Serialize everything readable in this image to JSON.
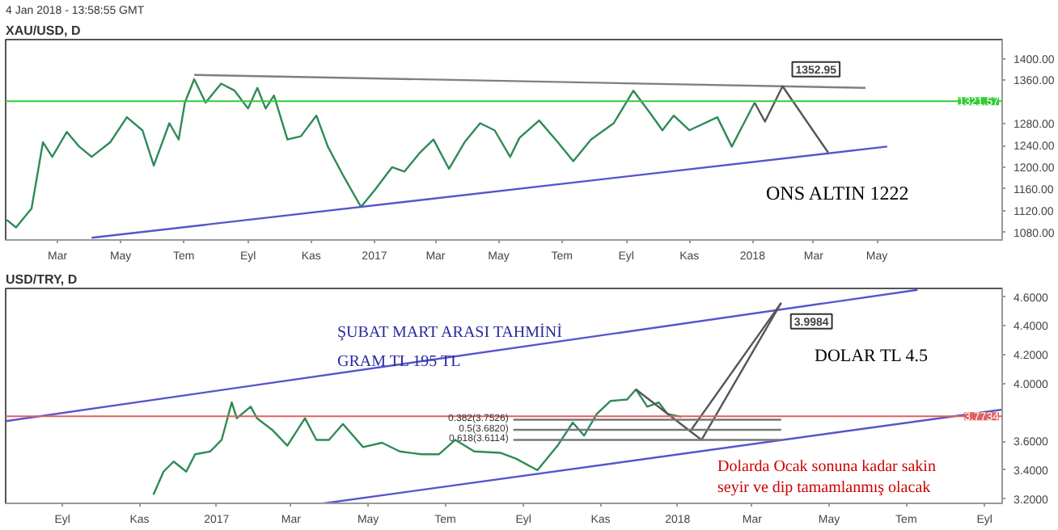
{
  "chart_data": [
    {
      "type": "line",
      "title": "XAU/USD, D",
      "subtitle": "4 Jan 2018 - 13:58:55 GMT",
      "xlim": [
        "2016-01-11",
        "2018-08-30"
      ],
      "ylim": [
        1066,
        1435
      ],
      "xticks": [
        {
          "value": "2016-03-01",
          "label": "Mar"
        },
        {
          "value": "2016-05-01",
          "label": "May"
        },
        {
          "value": "2016-07-01",
          "label": "Tem"
        },
        {
          "value": "2016-09-01",
          "label": "Eyl"
        },
        {
          "value": "2016-11-01",
          "label": "Kas"
        },
        {
          "value": "2017-01-01",
          "label": "2017"
        },
        {
          "value": "2017-03-01",
          "label": "Mar"
        },
        {
          "value": "2017-05-01",
          "label": "May"
        },
        {
          "value": "2017-07-01",
          "label": "Tem"
        },
        {
          "value": "2017-09-01",
          "label": "Eyl"
        },
        {
          "value": "2017-11-01",
          "label": "Kas"
        },
        {
          "value": "2018-01-01",
          "label": "2018"
        },
        {
          "value": "2018-03-01",
          "label": "Mar"
        },
        {
          "value": "2018-05-01",
          "label": "May"
        }
      ],
      "yticks": [
        {
          "value": 1080,
          "label": "1080.00"
        },
        {
          "value": 1120,
          "label": "1120.00"
        },
        {
          "value": 1160,
          "label": "1160.00"
        },
        {
          "value": 1200,
          "label": "1200.00"
        },
        {
          "value": 1240,
          "label": "1240.00"
        },
        {
          "value": 1280,
          "label": "1280.00"
        },
        {
          "value": 1360,
          "label": "1360.00"
        },
        {
          "value": 1400,
          "label": "1400.00"
        }
      ],
      "series": [
        {
          "color": "#2e8b57",
          "x": [
            "2016-01-12",
            "2016-01-21",
            "2016-02-05",
            "2016-02-16",
            "2016-02-25",
            "2016-03-10",
            "2016-03-22",
            "2016-04-03",
            "2016-04-21",
            "2016-05-07",
            "2016-05-22",
            "2016-06-02",
            "2016-06-17",
            "2016-06-26",
            "2016-07-02",
            "2016-07-11",
            "2016-07-22",
            "2016-08-06",
            "2016-08-19",
            "2016-09-01",
            "2016-09-10",
            "2016-09-18",
            "2016-09-26",
            "2016-10-09",
            "2016-10-22",
            "2016-11-06",
            "2016-11-17",
            "2016-12-02",
            "2016-12-19",
            "2017-01-01",
            "2017-01-18",
            "2017-01-30",
            "2017-02-14",
            "2017-02-27",
            "2017-03-14",
            "2017-03-29",
            "2017-04-13",
            "2017-04-27",
            "2017-05-12",
            "2017-05-21",
            "2017-06-09",
            "2017-06-27",
            "2017-07-12",
            "2017-07-29",
            "2017-08-20",
            "2017-09-08",
            "2017-09-24",
            "2017-10-06",
            "2017-10-17",
            "2017-11-01",
            "2017-11-28",
            "2017-12-12",
            "2018-01-03"
          ],
          "values": [
            1103,
            1089,
            1124,
            1246,
            1219,
            1265,
            1238,
            1219,
            1246,
            1292,
            1268,
            1203,
            1281,
            1251,
            1319,
            1362,
            1319,
            1354,
            1341,
            1308,
            1346,
            1308,
            1332,
            1251,
            1257,
            1295,
            1238,
            1184,
            1127,
            1157,
            1200,
            1192,
            1227,
            1251,
            1197,
            1246,
            1281,
            1268,
            1219,
            1254,
            1286,
            1246,
            1211,
            1251,
            1281,
            1341,
            1300,
            1268,
            1295,
            1268,
            1292,
            1238,
            1319
          ]
        },
        {
          "color": "#7f7f7f",
          "x": [
            "2016-07-11",
            "2018-04-20"
          ],
          "values": [
            1370,
            1346
          ]
        },
        {
          "color": "#5555cc",
          "x": [
            "2016-04-03",
            "2018-05-11"
          ],
          "values": [
            1070,
            1238
          ]
        },
        {
          "color": "#555555",
          "x": [
            "2018-01-03",
            "2018-01-13",
            "2018-01-30",
            "2018-03-15"
          ],
          "values": [
            1319,
            1284,
            1349,
            1227
          ]
        }
      ],
      "ref_lines": [
        {
          "axis": "y",
          "value": 1321.57,
          "label": "1321.57",
          "color": "#33cc33"
        }
      ],
      "annotations": [
        {
          "text": "1352.95",
          "x": "2018-01-30",
          "y": 1349
        },
        "ONS ALTIN 1222"
      ]
    },
    {
      "type": "line",
      "title": "USD/TRY, D",
      "xlim": [
        "2016-07-18",
        "2018-09-15"
      ],
      "ylim": [
        3.17,
        4.66
      ],
      "xticks": [
        {
          "value": "2016-09-01",
          "label": "Eyl"
        },
        {
          "value": "2016-11-01",
          "label": "Kas"
        },
        {
          "value": "2017-01-01",
          "label": "2017"
        },
        {
          "value": "2017-03-01",
          "label": "Mar"
        },
        {
          "value": "2017-05-01",
          "label": "May"
        },
        {
          "value": "2017-07-01",
          "label": "Tem"
        },
        {
          "value": "2017-09-01",
          "label": "Eyl"
        },
        {
          "value": "2017-11-01",
          "label": "Kas"
        },
        {
          "value": "2018-01-01",
          "label": "2018"
        },
        {
          "value": "2018-03-01",
          "label": "Mar"
        },
        {
          "value": "2018-05-01",
          "label": "May"
        },
        {
          "value": "2018-07-01",
          "label": "Tem"
        },
        {
          "value": "2018-09-01",
          "label": "Eyl"
        }
      ],
      "yticks": [
        {
          "value": 3.2,
          "label": "3.2000"
        },
        {
          "value": 3.4,
          "label": "3.4000"
        },
        {
          "value": 3.6,
          "label": "3.6000"
        },
        {
          "value": 4.0,
          "label": "4.0000"
        },
        {
          "value": 4.2,
          "label": "4.2000"
        },
        {
          "value": 4.4,
          "label": "4.4000"
        },
        {
          "value": 4.6,
          "label": "4.6000"
        }
      ],
      "series": [
        {
          "color": "#2e8b57",
          "x": [
            "2016-11-12",
            "2016-11-20",
            "2016-11-28",
            "2016-12-08",
            "2016-12-15",
            "2016-12-27",
            "2017-01-05",
            "2017-01-13",
            "2017-01-17",
            "2017-01-28",
            "2017-02-02",
            "2017-02-14",
            "2017-02-26",
            "2017-03-12",
            "2017-03-21",
            "2017-03-31",
            "2017-04-11",
            "2017-04-27",
            "2017-05-12",
            "2017-05-26",
            "2017-06-12",
            "2017-06-26",
            "2017-07-09",
            "2017-07-24",
            "2017-08-14",
            "2017-08-26",
            "2017-09-12",
            "2017-09-28",
            "2017-10-10",
            "2017-10-19",
            "2017-10-29",
            "2017-11-09",
            "2017-11-22",
            "2017-11-29",
            "2017-12-08",
            "2017-12-17",
            "2017-12-24",
            "2018-01-04"
          ],
          "values": [
            3.23,
            3.39,
            3.46,
            3.39,
            3.51,
            3.53,
            3.61,
            3.87,
            3.76,
            3.84,
            3.76,
            3.68,
            3.57,
            3.76,
            3.61,
            3.61,
            3.72,
            3.56,
            3.59,
            3.53,
            3.51,
            3.51,
            3.61,
            3.53,
            3.52,
            3.48,
            3.4,
            3.57,
            3.73,
            3.64,
            3.79,
            3.88,
            3.89,
            3.96,
            3.84,
            3.87,
            3.79,
            3.77
          ]
        },
        {
          "color": "#5555cc",
          "x": [
            "2016-07-18",
            "2018-07-10"
          ],
          "values": [
            3.74,
            4.65
          ]
        },
        {
          "color": "#5555cc",
          "x": [
            "2017-03-27",
            "2018-09-15"
          ],
          "values": [
            3.17,
            3.82
          ]
        },
        {
          "color": "#555555",
          "x": [
            "2017-11-29",
            "2018-01-11",
            "2018-03-24"
          ],
          "values": [
            3.96,
            3.67,
            4.56
          ]
        },
        {
          "color": "#555555",
          "x": [
            "2018-01-11",
            "2018-01-20",
            "2018-03-24"
          ],
          "values": [
            3.67,
            3.61,
            4.56
          ]
        },
        {
          "name": "0.382(3.7526)",
          "color": "#777777",
          "x": [
            "2017-08-24",
            "2018-03-24"
          ],
          "values": [
            3.75,
            3.75
          ]
        },
        {
          "name": "0.5(3.6820)",
          "color": "#777777",
          "x": [
            "2017-08-24",
            "2018-03-24"
          ],
          "values": [
            3.68,
            3.68
          ]
        },
        {
          "name": "0.618(3.6114)",
          "color": "#777777",
          "x": [
            "2017-08-24",
            "2018-03-24"
          ],
          "values": [
            3.61,
            3.61
          ]
        }
      ],
      "ref_lines": [
        {
          "axis": "y",
          "value": 3.7734,
          "label": "3.7734",
          "color": "#e06060"
        }
      ],
      "annotations": [
        {
          "text": "3.9984",
          "x": "2018-03-24",
          "y": 4.56
        },
        "ŞUBAT MART ARASI TAHMİNİ",
        "GRAM TL   195 TL",
        "DOLAR TL  4.5",
        "Dolarda Ocak sonuna kadar sakin\nseyir ve dip tamamlanmış olacak"
      ]
    }
  ]
}
